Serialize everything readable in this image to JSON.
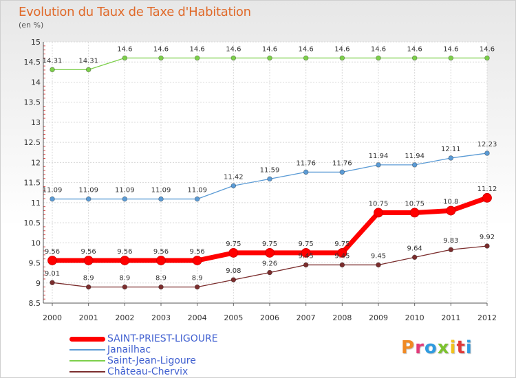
{
  "header": {
    "title": "Evolution du Taux de Taxe d'Habitation",
    "unit": "(en %)"
  },
  "logo": {
    "text": "Proxiti",
    "colors": [
      "#f08a24",
      "#e23a7a",
      "#2f9be0",
      "#7cc22e",
      "#f0c21e",
      "#e03a3a",
      "#2f9be0"
    ]
  },
  "chart_data": {
    "type": "line",
    "title": "Evolution du Taux de Taxe d'Habitation",
    "ylabel": "(en %)",
    "xlabel": "",
    "ylim": [
      8.5,
      15
    ],
    "yticks": [
      "8.5",
      "9",
      "9.5",
      "10",
      "10.5",
      "11",
      "11.5",
      "12",
      "12.5",
      "13",
      "13.5",
      "14",
      "14.5",
      "15"
    ],
    "x": [
      "2000",
      "2001",
      "2002",
      "2003",
      "2004",
      "2005",
      "2006",
      "2007",
      "2008",
      "2009",
      "2010",
      "2011",
      "2012"
    ],
    "grid": true,
    "legend_position": "bottom-left",
    "series": [
      {
        "name": "SAINT-PRIEST-LIGOURE",
        "color": "#ff0000",
        "emphasis": true,
        "values": [
          9.56,
          9.56,
          9.56,
          9.56,
          9.56,
          9.75,
          9.75,
          9.75,
          9.75,
          10.75,
          10.75,
          10.8,
          11.12
        ],
        "labels": [
          "9.56",
          "9.56",
          "9.56",
          "9.56",
          "9.56",
          "9.75",
          "9.75",
          "9.75",
          "9.75",
          "10.75",
          "10.75",
          "10.8",
          "11.12"
        ]
      },
      {
        "name": "Janailhac",
        "color": "#5b9bd5",
        "emphasis": false,
        "values": [
          11.09,
          11.09,
          11.09,
          11.09,
          11.09,
          11.42,
          11.59,
          11.76,
          11.76,
          11.94,
          11.94,
          12.11,
          12.23
        ],
        "labels": [
          "11.09",
          "11.09",
          "11.09",
          "11.09",
          "11.09",
          "11.42",
          "11.59",
          "11.76",
          "11.76",
          "11.94",
          "11.94",
          "12.11",
          "12.23"
        ]
      },
      {
        "name": "Saint-Jean-Ligoure",
        "color": "#7ccf4a",
        "emphasis": false,
        "values": [
          14.31,
          14.31,
          14.6,
          14.6,
          14.6,
          14.6,
          14.6,
          14.6,
          14.6,
          14.6,
          14.6,
          14.6,
          14.6
        ],
        "labels": [
          "14.31",
          "14.31",
          "14.6",
          "14.6",
          "14.6",
          "14.6",
          "14.6",
          "14.6",
          "14.6",
          "14.6",
          "14.6",
          "14.6",
          "14.6"
        ]
      },
      {
        "name": "Château-Chervix",
        "color": "#7b2d2d",
        "emphasis": false,
        "values": [
          9.01,
          8.9,
          8.9,
          8.9,
          8.9,
          9.08,
          9.26,
          9.45,
          9.45,
          9.45,
          9.64,
          9.83,
          9.92
        ],
        "labels": [
          "9.01",
          "8.9",
          "8.9",
          "8.9",
          "8.9",
          "9.08",
          "9.26",
          "9.45",
          "9.45",
          "9.45",
          "9.64",
          "9.83",
          "9.92"
        ]
      }
    ]
  }
}
